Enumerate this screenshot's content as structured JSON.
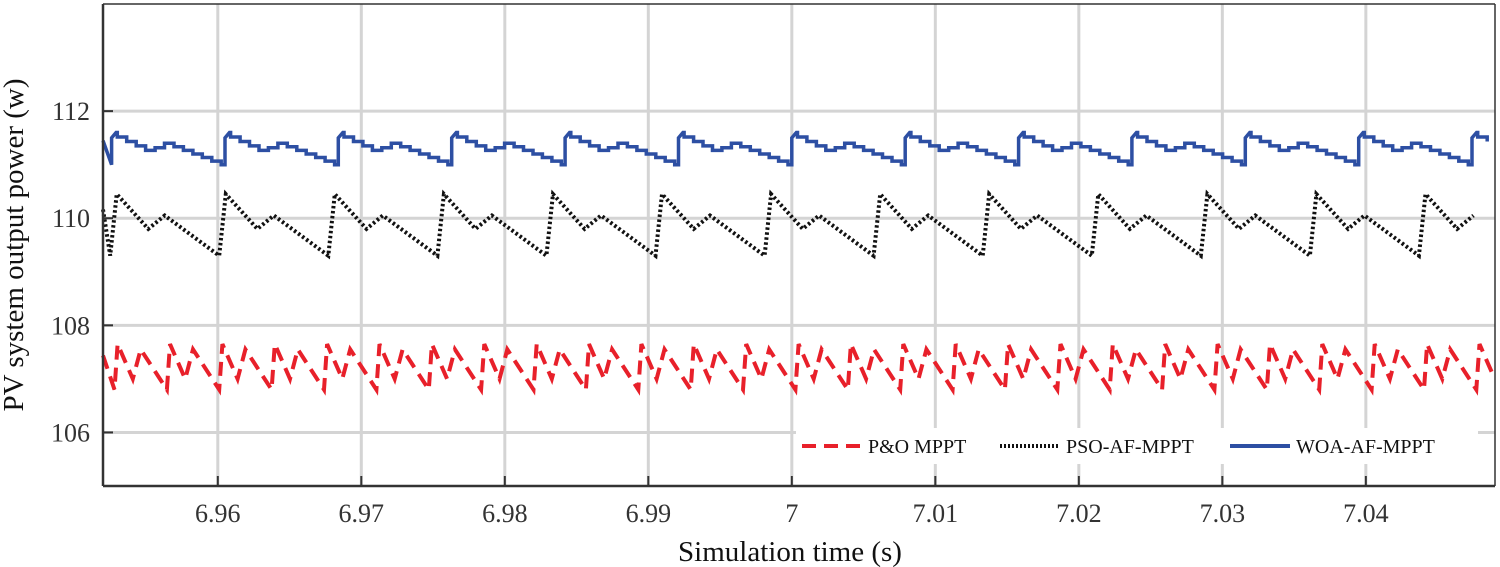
{
  "chart_data": {
    "type": "line",
    "title": "",
    "xlabel": "Simulation time (s)",
    "ylabel": "PV system output power (w)",
    "xlim": [
      6.952,
      7.049
    ],
    "ylim": [
      105,
      114
    ],
    "xticks": [
      6.96,
      6.97,
      6.98,
      6.99,
      7.0,
      7.01,
      7.02,
      7.03,
      7.04
    ],
    "xtick_labels": [
      "6.96",
      "6.97",
      "6.98",
      "6.99",
      "7",
      "7.01",
      "7.02",
      "7.03",
      "7.04"
    ],
    "yticks": [
      106,
      108,
      110,
      112
    ],
    "ytick_labels": [
      "106",
      "108",
      "110",
      "112"
    ],
    "grid": true,
    "legend_position": "bottom-right",
    "series": [
      {
        "name": "P&O MPPT",
        "color": "#e8202a",
        "style": "dashed",
        "pattern": "po",
        "period": 0.00365,
        "start": 6.9528,
        "peak": 107.65,
        "mid_low": 107.0,
        "mid_peak": 107.55,
        "low": 106.8
      },
      {
        "name": "PSO-AF-MPPT",
        "color": "#111111",
        "style": "dotted",
        "pattern": "pso",
        "period": 0.0076,
        "start": 6.9525,
        "peak": 110.45,
        "mid_low": 109.8,
        "mid_peak": 110.05,
        "low": 109.3
      },
      {
        "name": "WOA-AF-MPPT",
        "color": "#2d4fa3",
        "style": "solid",
        "pattern": "woa",
        "period": 0.0079,
        "start": 6.9526,
        "peak": 111.6,
        "mid_low": 111.25,
        "mid_peak": 111.4,
        "low": 111.0
      }
    ]
  }
}
